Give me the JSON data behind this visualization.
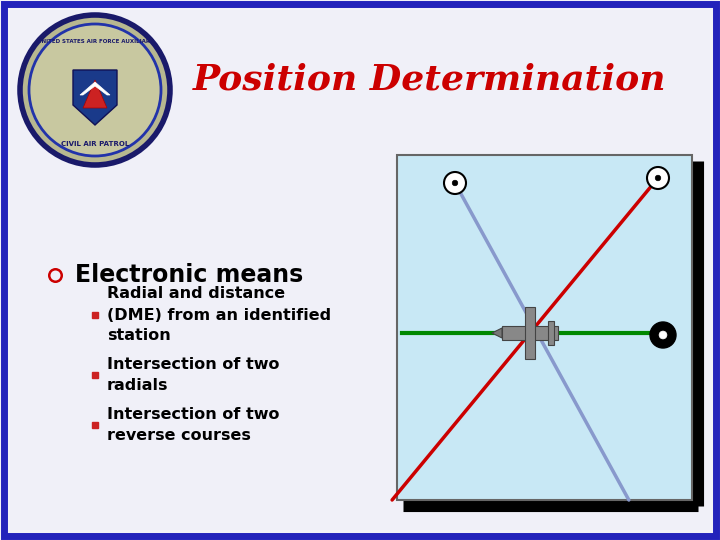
{
  "title": "Position Determination",
  "title_color": "#CC0000",
  "title_fontsize": 26,
  "title_fontstyle": "italic",
  "title_fontweight": "bold",
  "bg_color": "#E8E8F0",
  "border_color": "#2222BB",
  "border_linewidth": 6,
  "bullet_header": "Electronic means",
  "bullet_header_fontsize": 17,
  "bullet_header_fontweight": "bold",
  "bullets": [
    "Radial and distance\n(DME) from an identified\nstation",
    "Intersection of two\nradials",
    "Intersection of two\nreverse courses"
  ],
  "bullet_fontsize": 11.5,
  "bullet_fontweight": "bold",
  "diagram_bg": "#C8E8F5",
  "diagram_border": "#666666",
  "blue_line_color": "#8899CC",
  "red_line_color": "#CC0000",
  "green_line_color": "#008800",
  "slide_bg": "#F0F0F8"
}
